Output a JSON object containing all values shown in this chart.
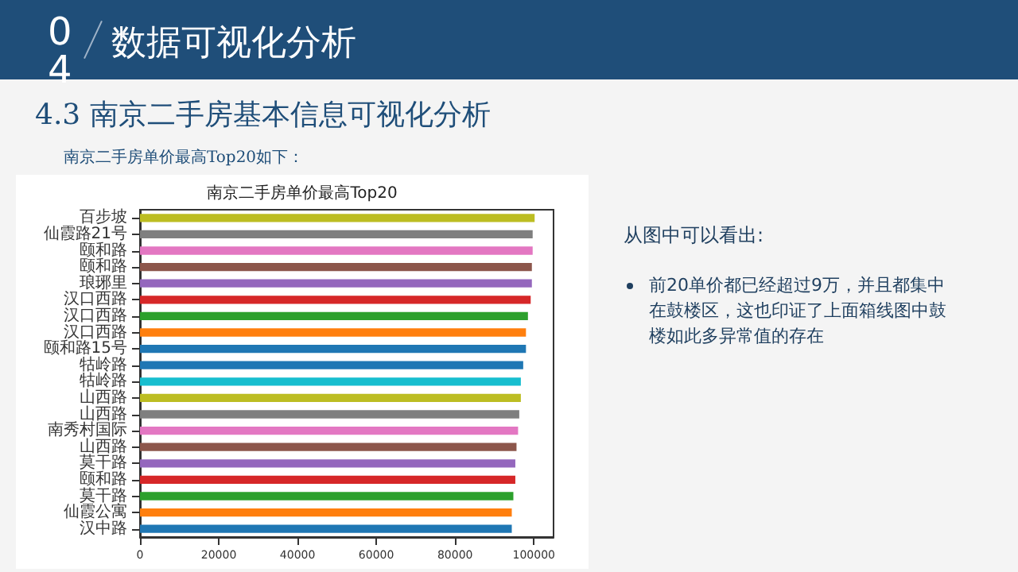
{
  "chart_data": {
    "type": "bar",
    "orientation": "horizontal",
    "title": "南京二手房单价最高Top20",
    "categories": [
      "百步坡",
      "仙霞路21号",
      "颐和路",
      "颐和路",
      "琅琊里",
      "汉口西路",
      "汉口西路",
      "汉口西路",
      "颐和路15号",
      "牯岭路",
      "牯岭路",
      "山西路",
      "山西路",
      "南秀村国际",
      "山西路",
      "莫干路",
      "颐和路",
      "莫干路",
      "仙霞公寓",
      "汉中路"
    ],
    "values": [
      100200,
      99700,
      99700,
      99500,
      99500,
      99200,
      98500,
      98000,
      98000,
      97300,
      96700,
      96700,
      96300,
      96000,
      95600,
      95300,
      95300,
      94800,
      94400,
      94400
    ],
    "colors": [
      "#bcbd22",
      "#7f7f7f",
      "#e377c2",
      "#8c564b",
      "#9467bd",
      "#d62728",
      "#2ca02c",
      "#ff7f0e",
      "#1f77b4",
      "#1f77b4",
      "#17becf",
      "#bcbd22",
      "#7f7f7f",
      "#e377c2",
      "#8c564b",
      "#9467bd",
      "#d62728",
      "#2ca02c",
      "#ff7f0e",
      "#1f77b4"
    ],
    "xlim": [
      0,
      105000
    ],
    "xticks": [
      0,
      20000,
      40000,
      60000,
      80000,
      100000
    ],
    "grid": false,
    "annotations": [
      "04",
      "数据可视化分析",
      "4.3 南京二手房基本信息可视化分析",
      "南京二手房单价最高Top20如下：",
      "从图中可以看出:",
      "前20单价都已经超过9万，并且都集中在鼓楼区，这也印证了上面箱线图中鼓楼如此多异常值的存在"
    ]
  }
}
